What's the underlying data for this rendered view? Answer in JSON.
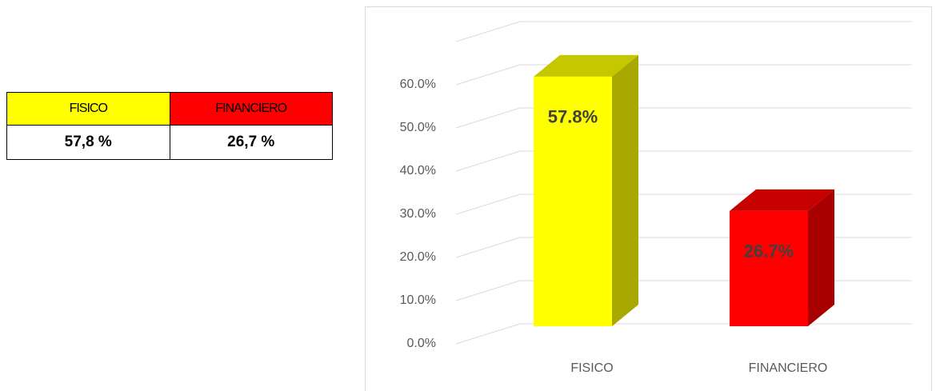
{
  "table": {
    "headers": [
      "FISICO",
      "FINANCIERO"
    ],
    "values": [
      "57,8 %",
      "26,7 %"
    ]
  },
  "chart_data": {
    "type": "bar",
    "categories": [
      "FISICO",
      "FINANCIERO"
    ],
    "values": [
      57.8,
      26.7
    ],
    "value_labels": [
      "57.8%",
      "26.7%"
    ],
    "colors": [
      "#ffff00",
      "#ff0000"
    ],
    "ylim": [
      0,
      70
    ],
    "yticks": [
      {
        "value": 0,
        "label": "0.0%"
      },
      {
        "value": 10,
        "label": "10.0%"
      },
      {
        "value": 20,
        "label": "20.0%"
      },
      {
        "value": 30,
        "label": "30.0%"
      },
      {
        "value": 40,
        "label": "40.0%"
      },
      {
        "value": 50,
        "label": "50.0%"
      },
      {
        "value": 60,
        "label": "60.0%"
      }
    ],
    "grid": true
  }
}
